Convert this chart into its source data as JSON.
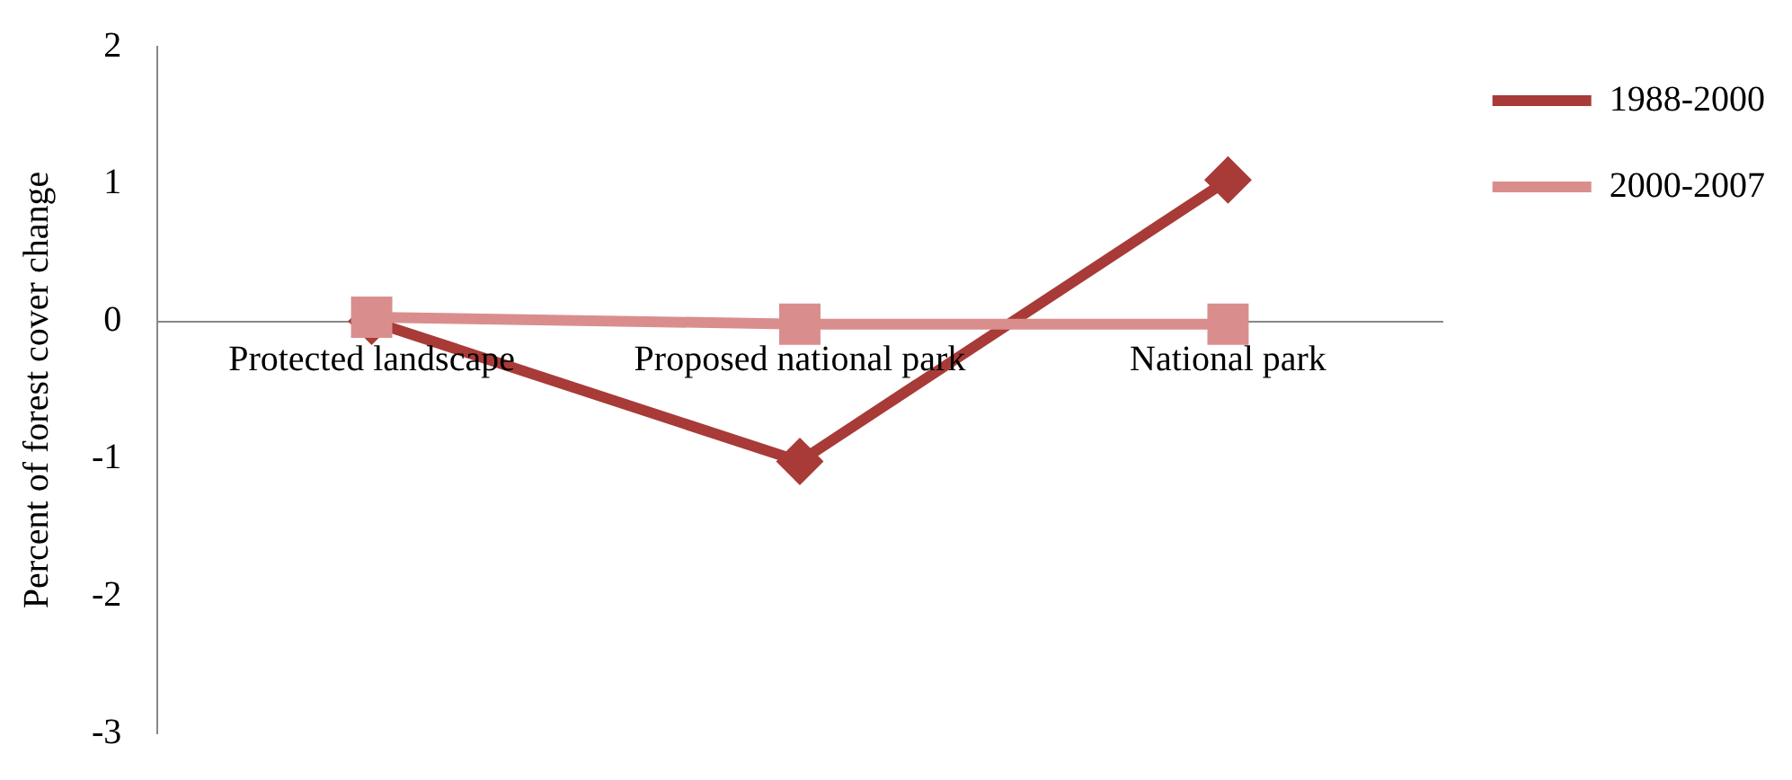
{
  "chart_data": {
    "type": "line",
    "ylabel": "Percent of forest cover change",
    "categories": [
      "Protected landscape",
      "Proposed national park",
      "National park"
    ],
    "series": [
      {
        "name": "1988-2000",
        "color": "#a83b37",
        "marker": "diamond",
        "values": [
          0.0,
          -1.02,
          1.03
        ]
      },
      {
        "name": "2000-2007",
        "color": "#d98e8d",
        "marker": "square",
        "values": [
          0.03,
          -0.02,
          -0.02
        ]
      }
    ],
    "ylim": [
      -3,
      2
    ],
    "yticks": [
      -3,
      -2,
      -1,
      0,
      1,
      2
    ],
    "grid": false,
    "legend": "right"
  }
}
